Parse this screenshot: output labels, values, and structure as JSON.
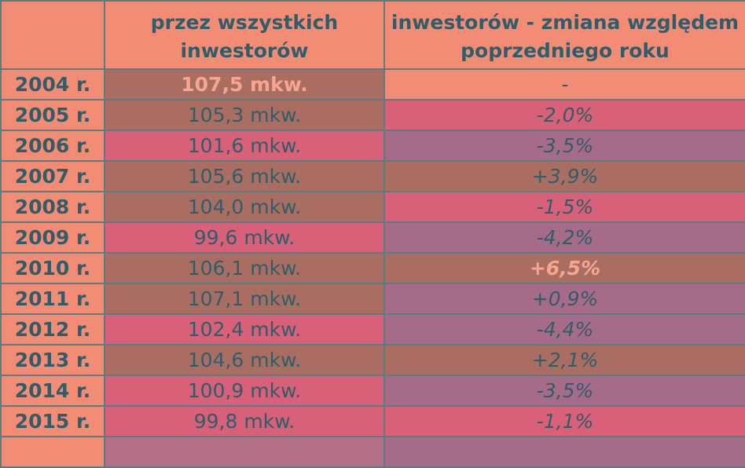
{
  "header": {
    "col_year": "",
    "col_area": "przez wszystkich inwestorów",
    "col_change": "inwestorów - zmiana względem poprzedniego roku"
  },
  "rows": [
    {
      "year": "2004 r.",
      "area": "107,5 mkw.",
      "change": "-"
    },
    {
      "year": "2005 r.",
      "area": "105,3 mkw.",
      "change": "-2,0%"
    },
    {
      "year": "2006 r.",
      "area": "101,6 mkw.",
      "change": "-3,5%"
    },
    {
      "year": "2007 r.",
      "area": "105,6 mkw.",
      "change": "+3,9%"
    },
    {
      "year": "2008 r.",
      "area": "104,0 mkw.",
      "change": "-1,5%"
    },
    {
      "year": "2009 r.",
      "area": "99,6 mkw.",
      "change": "-4,2%"
    },
    {
      "year": "2010 r.",
      "area": "106,1 mkw.",
      "change": "+6,5%"
    },
    {
      "year": "2011 r.",
      "area": "107,1 mkw.",
      "change": "+0,9%"
    },
    {
      "year": "2012 r.",
      "area": "102,4 mkw.",
      "change": "-4,4%"
    },
    {
      "year": "2013 r.",
      "area": "104,6 mkw.",
      "change": "+2,1%"
    },
    {
      "year": "2014 r.",
      "area": "100,9 mkw.",
      "change": "-3,5%"
    },
    {
      "year": "2015 r.",
      "area": "99,8 mkw.",
      "change": "-1,1%"
    }
  ],
  "colors": {
    "peach": "#f28c74",
    "brown": "#a96d62",
    "rose": "#d86078",
    "mauve": "#a56b88",
    "text": "#2f5e6a",
    "highlight_text": "#f6a68f",
    "border": "#5f7b82"
  }
}
